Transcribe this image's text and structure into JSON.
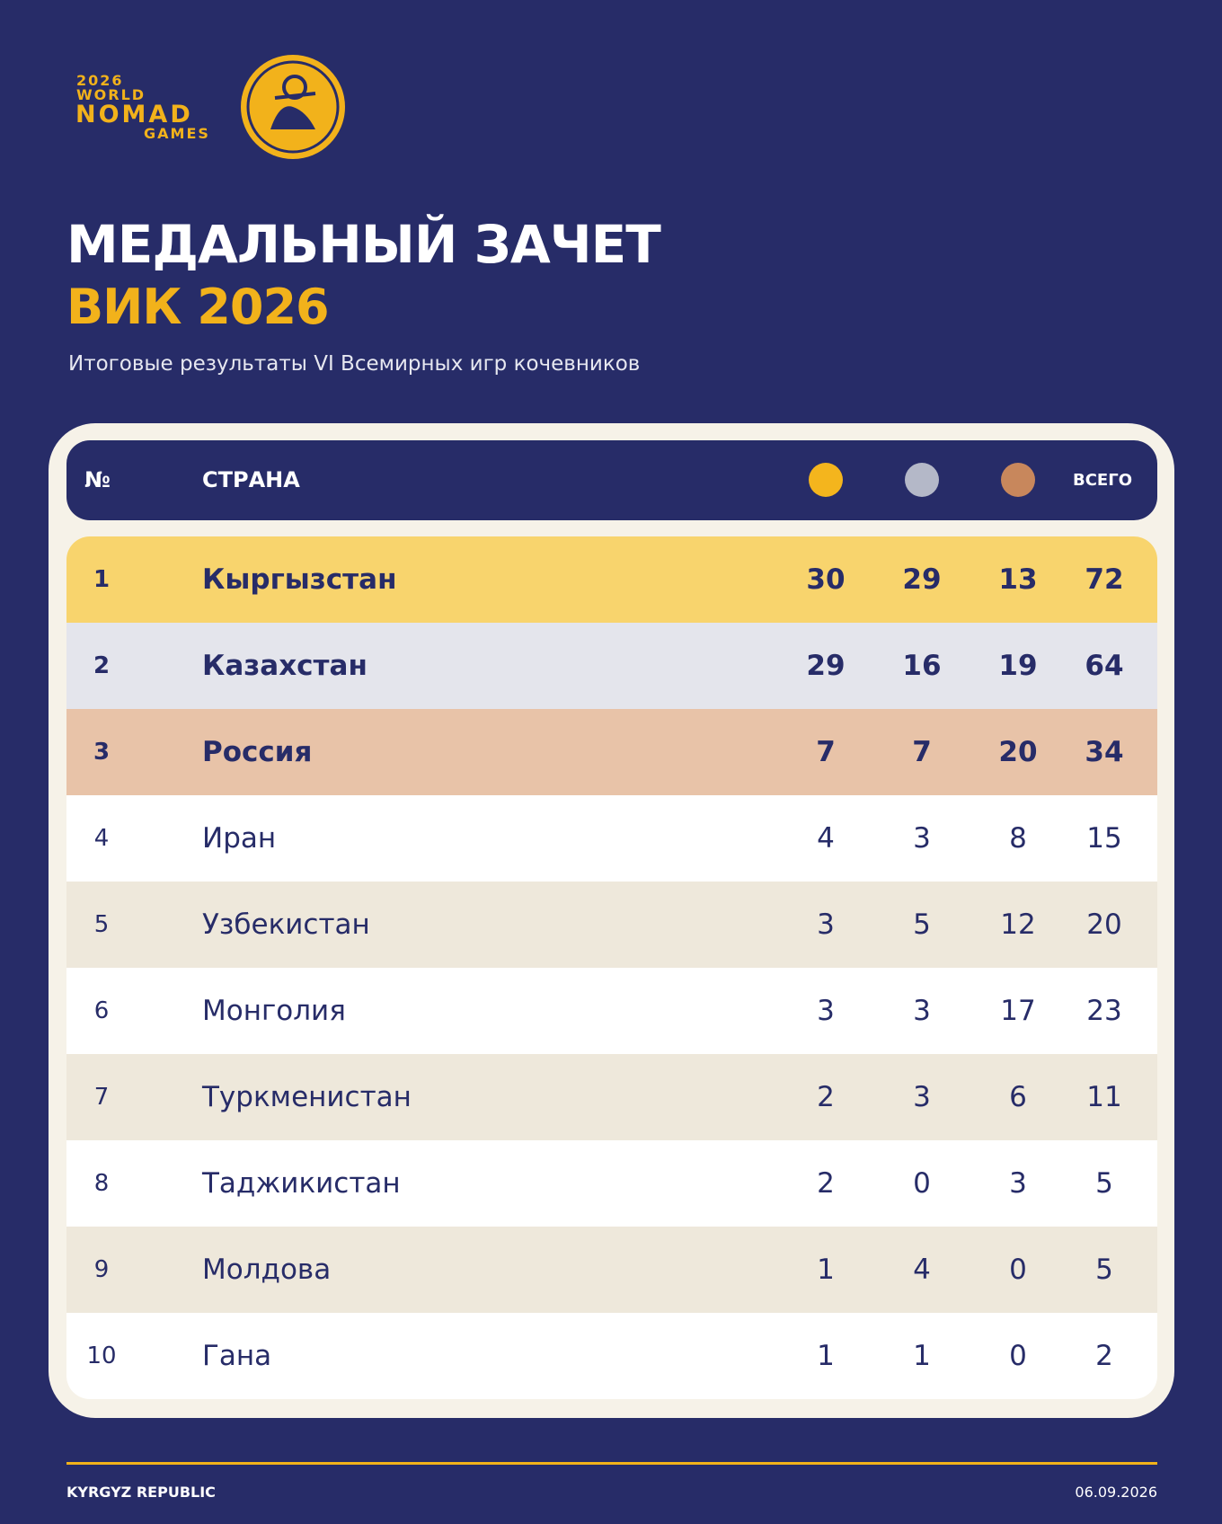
{
  "logo": {
    "year": "2026",
    "line1": "WORLD",
    "line2": "NOMAD",
    "line3": "GAMES"
  },
  "header": {
    "title": "МЕДАЛЬНЫЙ ЗАЧЕТ",
    "subtitle_accent": "ВИК 2026",
    "description": "Итоговые результаты VI Всемирных игр кочевников"
  },
  "table": {
    "columns": {
      "rank": "№",
      "country": "СТРАНА",
      "total": "ВСЕГО"
    },
    "rows": [
      [
        "1",
        "Кыргызстан",
        "30",
        "29",
        "13",
        "72"
      ],
      [
        "2",
        "Казахстан",
        "29",
        "16",
        "19",
        "64"
      ],
      [
        "3",
        "Россия",
        "7",
        "7",
        "20",
        "34"
      ],
      [
        "4",
        "Иран",
        "4",
        "3",
        "8",
        "15"
      ],
      [
        "5",
        "Узбекистан",
        "3",
        "5",
        "12",
        "20"
      ],
      [
        "6",
        "Монголия",
        "3",
        "3",
        "17",
        "23"
      ],
      [
        "7",
        "Туркменистан",
        "2",
        "3",
        "6",
        "11"
      ],
      [
        "8",
        "Таджикистан",
        "2",
        "0",
        "3",
        "5"
      ],
      [
        "9",
        "Молдова",
        "1",
        "4",
        "0",
        "5"
      ],
      [
        "10",
        "Гана",
        "1",
        "1",
        "0",
        "2"
      ]
    ]
  },
  "footer": {
    "left": "KYRGYZ REPUBLIC",
    "right": "06.09.2026"
  }
}
